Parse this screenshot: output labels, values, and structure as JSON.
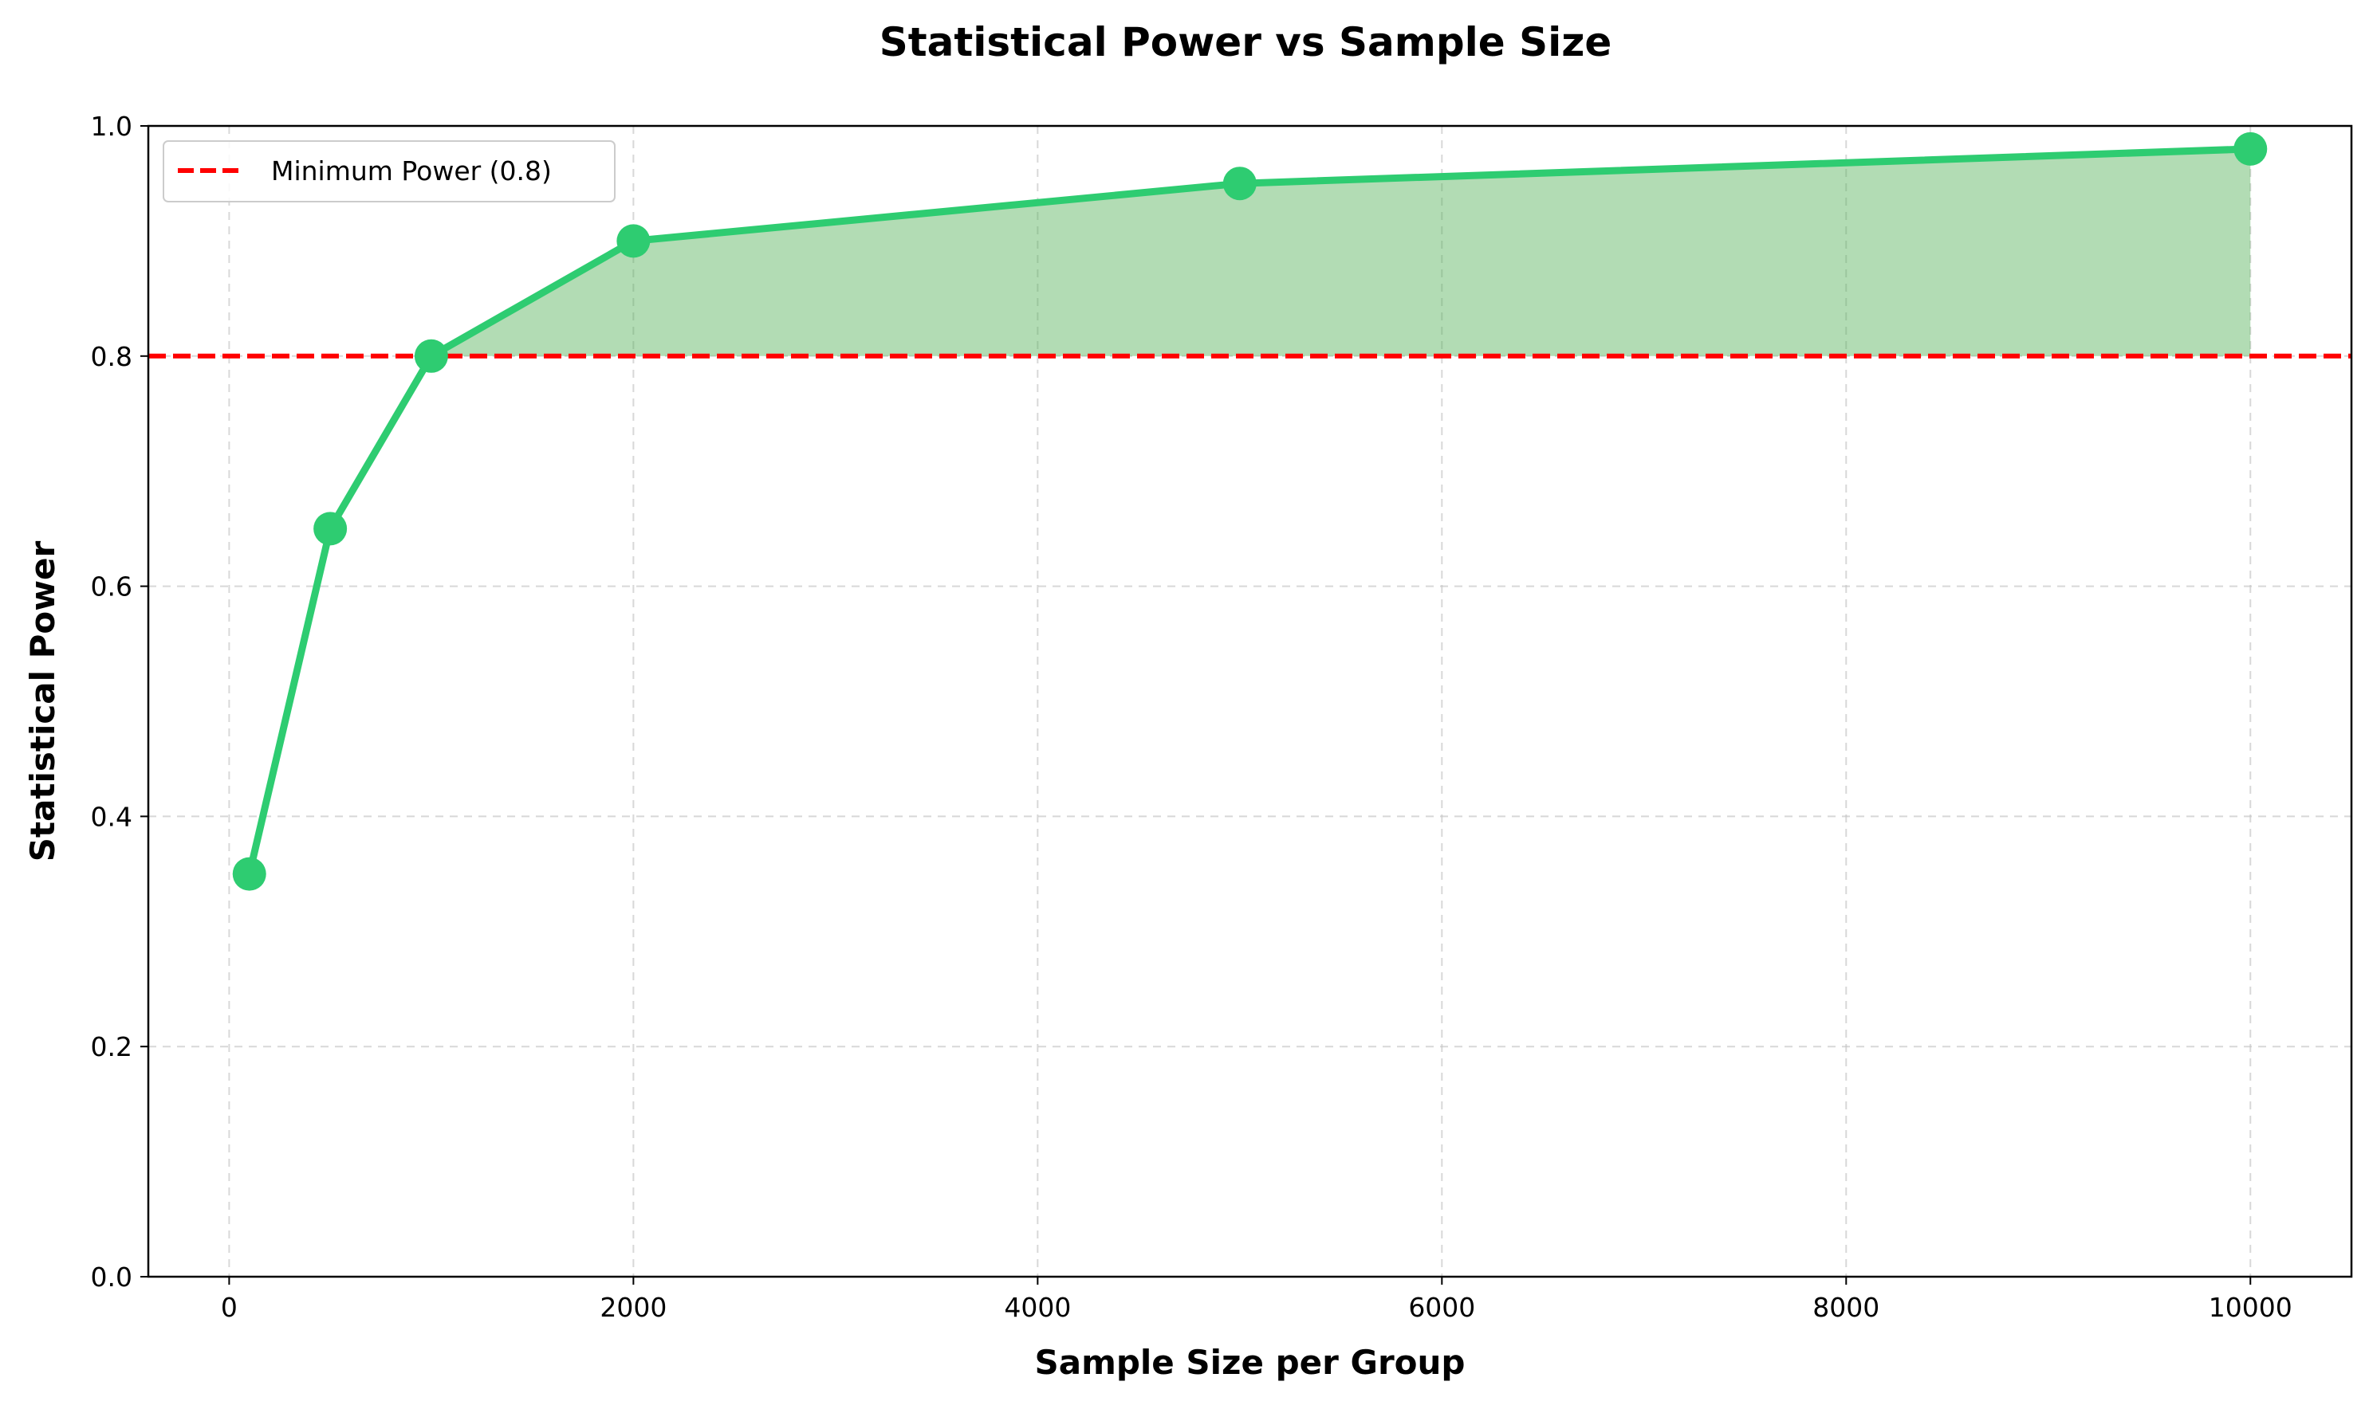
{
  "chart_data": {
    "type": "line",
    "title": "Statistical Power vs Sample Size",
    "xlabel": "Sample Size per Group",
    "ylabel": "Statistical Power",
    "xlim": [
      -400,
      10500
    ],
    "ylim": [
      0.0,
      1.0
    ],
    "x_ticks": [
      0,
      2000,
      4000,
      6000,
      8000,
      10000
    ],
    "x_tick_labels": [
      "0",
      "2000",
      "4000",
      "6000",
      "8000",
      "10000"
    ],
    "y_ticks": [
      0.0,
      0.2,
      0.4,
      0.6,
      0.8,
      1.0
    ],
    "y_tick_labels": [
      "0.0",
      "0.2",
      "0.4",
      "0.6",
      "0.8",
      "1.0"
    ],
    "grid": true,
    "legend_position": "top-left",
    "series": [
      {
        "x": [
          100,
          500,
          1000,
          2000,
          5000,
          10000
        ],
        "values": [
          0.35,
          0.65,
          0.8,
          0.9,
          0.95,
          0.98
        ],
        "color": "#2ecc71",
        "marker": "circle"
      }
    ],
    "reference_line": {
      "name": "Minimum Power (0.8)",
      "y": 0.8,
      "color": "#ff0000",
      "style": "dashed"
    },
    "fill_above_reference": {
      "color": "#4caf50",
      "opacity": 0.43
    }
  }
}
